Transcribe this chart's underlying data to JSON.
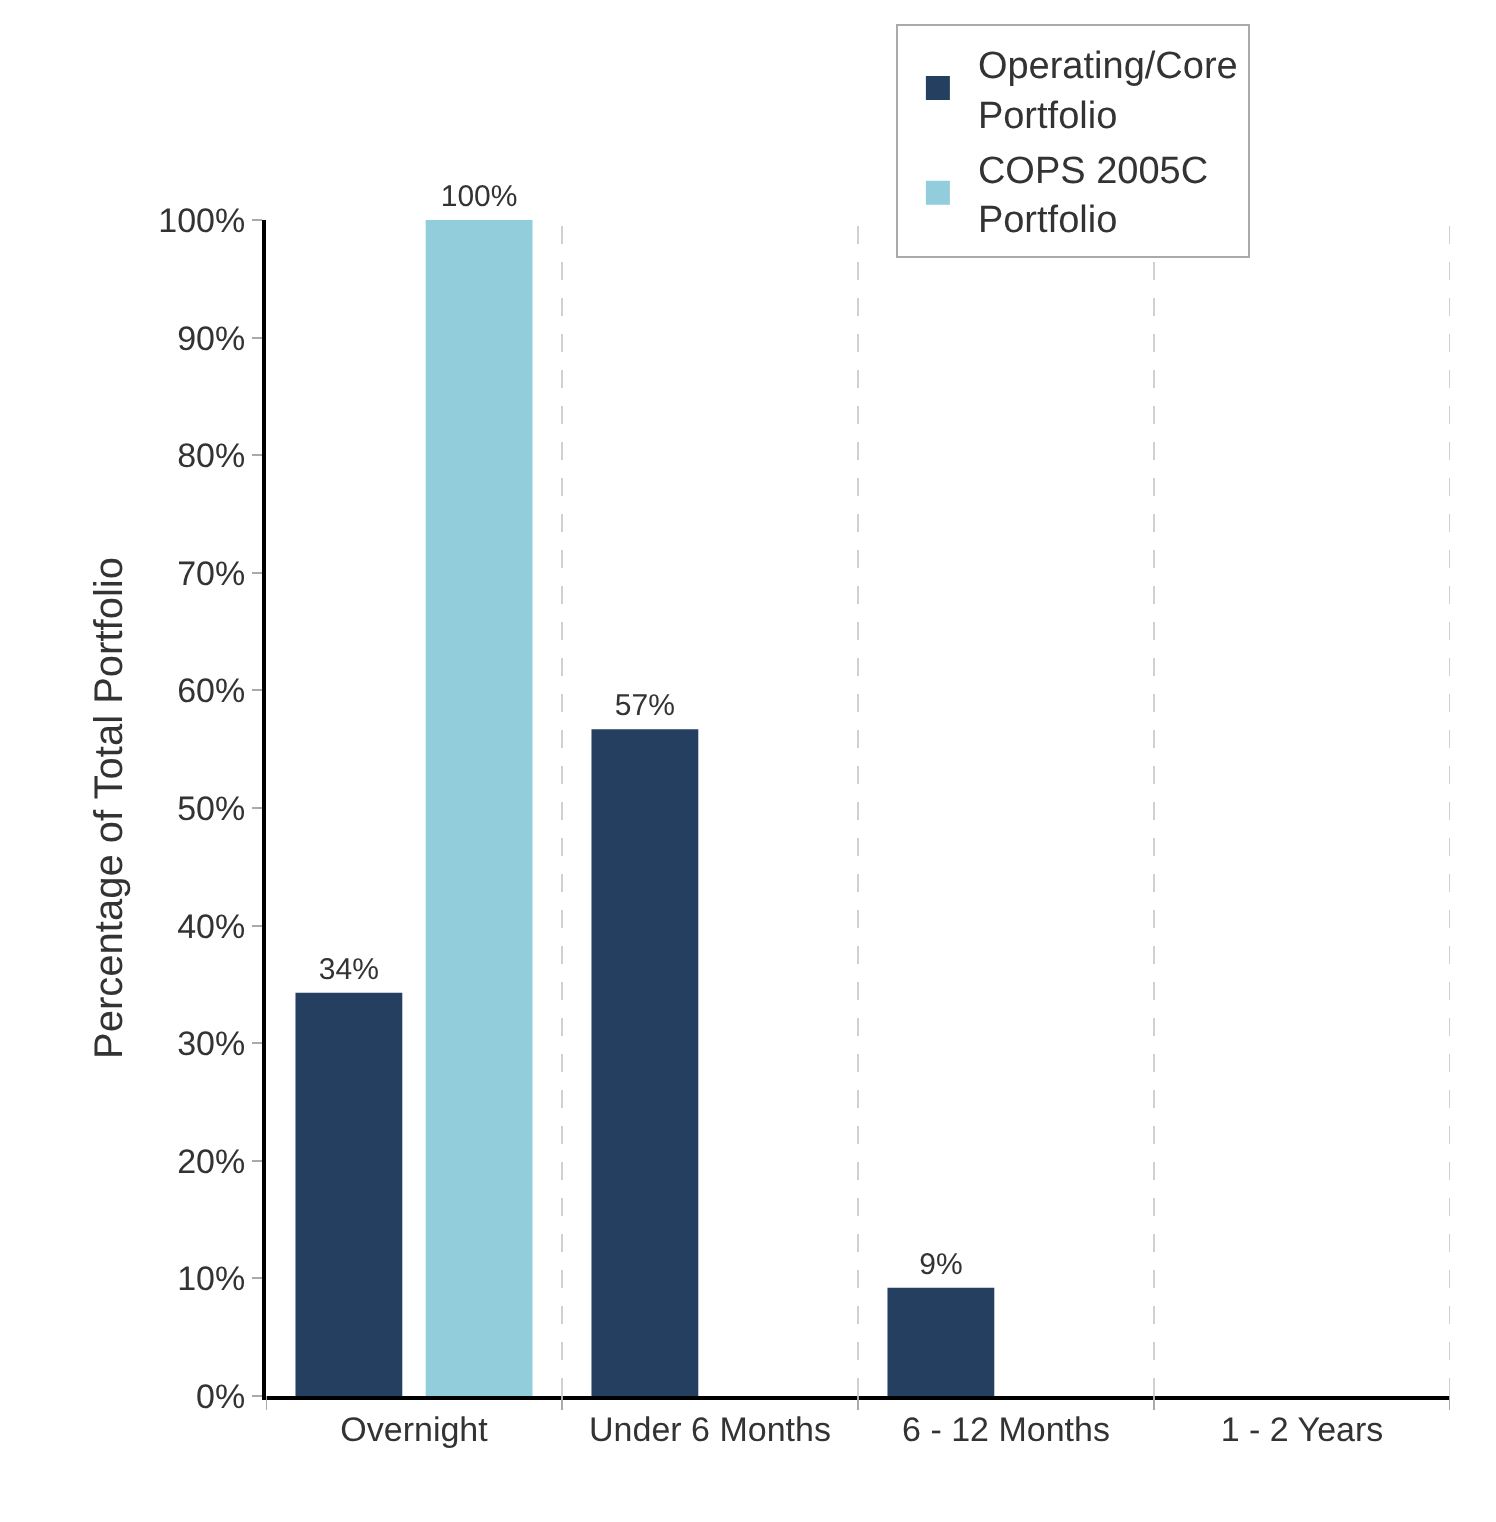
{
  "chart_data": {
    "type": "bar",
    "ylabel": "Percentage of Total Portfolio",
    "categories": [
      "Overnight",
      "Under 6 Months",
      "6 - 12 Months",
      "1 - 2 Years"
    ],
    "series": [
      {
        "name": "Operating/Core Portfolio",
        "color": "#243f60",
        "values": [
          34.3,
          56.7,
          9.2,
          null
        ],
        "value_labels": [
          "34%",
          "57%",
          "9%",
          null
        ]
      },
      {
        "name": "COPS 2005C Portfolio",
        "color": "#92cddc",
        "values": [
          100,
          null,
          null,
          null
        ],
        "value_labels": [
          "100%",
          null,
          null,
          null
        ]
      }
    ],
    "ylim": [
      0,
      100
    ],
    "yticks": [
      {
        "value": 0,
        "label": "0%"
      },
      {
        "value": 10,
        "label": "10%"
      },
      {
        "value": 20,
        "label": "20%"
      },
      {
        "value": 30,
        "label": "30%"
      },
      {
        "value": 40,
        "label": "40%"
      },
      {
        "value": 50,
        "label": "50%"
      },
      {
        "value": 60,
        "label": "60%"
      },
      {
        "value": 70,
        "label": "70%"
      },
      {
        "value": 80,
        "label": "80%"
      },
      {
        "value": 90,
        "label": "90%"
      },
      {
        "value": 100,
        "label": "100%"
      }
    ],
    "grid": "x",
    "legend": "top right"
  }
}
